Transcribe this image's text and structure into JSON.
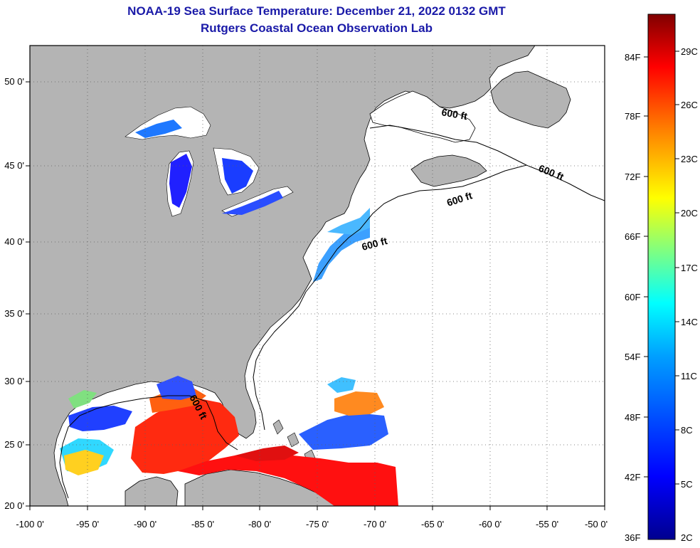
{
  "title_line1": "NOAA-19 Sea Surface Temperature:  December 21, 2022 0132 GMT",
  "title_line2": "Rutgers Coastal Ocean Observation Lab",
  "x_ticks": [
    "-100 0'",
    "-95 0'",
    "-90 0'",
    "-85 0'",
    "-80 0'",
    "-75 0'",
    "-70 0'",
    "-65 0'",
    "-60 0'",
    "-55 0'",
    "-50 0'"
  ],
  "y_ticks": [
    "20 0'",
    "25 0'",
    "30 0'",
    "35 0'",
    "40 0'",
    "45 0'",
    "50 0'"
  ],
  "contour_labels": [
    "600 ft",
    "600 ft",
    "600 ft",
    "600 ft",
    "600 ft"
  ],
  "colorbar": {
    "fahrenheit": [
      "36F",
      "42F",
      "48F",
      "54F",
      "60F",
      "66F",
      "72F",
      "78F",
      "84F"
    ],
    "celsius": [
      "2C",
      "5C",
      "8C",
      "11C",
      "14C",
      "17C",
      "20C",
      "23C",
      "26C",
      "29C"
    ],
    "colors": [
      "#00008f",
      "#0000ff",
      "#0080ff",
      "#00ffff",
      "#80ff80",
      "#ffff00",
      "#ff8000",
      "#ff0000",
      "#800000"
    ]
  },
  "map": {
    "lon_range": [
      -100,
      -50
    ],
    "lat_range": [
      20,
      52
    ],
    "land_color": "#b4b4b4",
    "ocean_color": "#ffffff"
  }
}
